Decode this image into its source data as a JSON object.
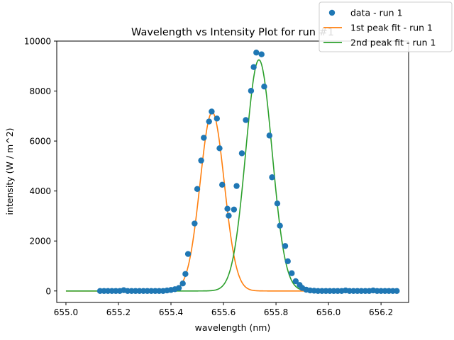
{
  "chart_data": {
    "type": "scatter",
    "title": "Wavelength vs Intensity Plot for run #1",
    "xlabel": "wavelength (nm)",
    "ylabel": "intensity (W / m^2)",
    "xlim": [
      654.965,
      656.305
    ],
    "ylim": [
      -460,
      10000
    ],
    "xticks": [
      655.0,
      655.2,
      655.4,
      655.6,
      655.8,
      656.0,
      656.2
    ],
    "xtick_labels": [
      "655.0",
      "655.2",
      "655.4",
      "655.6",
      "655.8",
      "656.0",
      "656.2"
    ],
    "yticks": [
      0,
      2000,
      4000,
      6000,
      8000,
      10000
    ],
    "ytick_labels": [
      "0",
      "2000",
      "4000",
      "6000",
      "8000",
      "10000"
    ],
    "grid": false,
    "legend_position": "top-right",
    "series": [
      {
        "name": "data - run 1",
        "kind": "scatter",
        "color": "#1f77b4",
        "points": [
          [
            655.13,
            0
          ],
          [
            655.145,
            0
          ],
          [
            655.16,
            0
          ],
          [
            655.175,
            0
          ],
          [
            655.19,
            0
          ],
          [
            655.205,
            0
          ],
          [
            655.22,
            30
          ],
          [
            655.235,
            0
          ],
          [
            655.25,
            0
          ],
          [
            655.265,
            0
          ],
          [
            655.28,
            0
          ],
          [
            655.295,
            0
          ],
          [
            655.31,
            0
          ],
          [
            655.325,
            0
          ],
          [
            655.34,
            0
          ],
          [
            655.355,
            0
          ],
          [
            655.37,
            0
          ],
          [
            655.385,
            20
          ],
          [
            655.4,
            40
          ],
          [
            655.415,
            70
          ],
          [
            655.43,
            120
          ],
          [
            655.445,
            300
          ],
          [
            655.455,
            680
          ],
          [
            655.465,
            1480
          ],
          [
            655.49,
            2700
          ],
          [
            655.5,
            4080
          ],
          [
            655.515,
            5220
          ],
          [
            655.525,
            6130
          ],
          [
            655.545,
            6780
          ],
          [
            655.555,
            7180
          ],
          [
            655.575,
            6900
          ],
          [
            655.585,
            5710
          ],
          [
            655.595,
            4250
          ],
          [
            655.615,
            3290
          ],
          [
            655.62,
            3010
          ],
          [
            655.64,
            3260
          ],
          [
            655.65,
            4200
          ],
          [
            655.67,
            5510
          ],
          [
            655.685,
            6840
          ],
          [
            655.705,
            8010
          ],
          [
            655.715,
            8960
          ],
          [
            655.725,
            9540
          ],
          [
            655.745,
            9470
          ],
          [
            655.755,
            8180
          ],
          [
            655.775,
            6220
          ],
          [
            655.785,
            4550
          ],
          [
            655.805,
            3500
          ],
          [
            655.815,
            2610
          ],
          [
            655.835,
            1800
          ],
          [
            655.845,
            1190
          ],
          [
            655.86,
            710
          ],
          [
            655.875,
            390
          ],
          [
            655.89,
            240
          ],
          [
            655.9,
            120
          ],
          [
            655.915,
            50
          ],
          [
            655.93,
            20
          ],
          [
            655.945,
            10
          ],
          [
            655.96,
            0
          ],
          [
            655.975,
            0
          ],
          [
            655.99,
            0
          ],
          [
            656.005,
            0
          ],
          [
            656.02,
            0
          ],
          [
            656.035,
            0
          ],
          [
            656.05,
            0
          ],
          [
            656.065,
            20
          ],
          [
            656.08,
            0
          ],
          [
            656.095,
            0
          ],
          [
            656.11,
            0
          ],
          [
            656.125,
            0
          ],
          [
            656.14,
            0
          ],
          [
            656.155,
            0
          ],
          [
            656.17,
            20
          ],
          [
            656.185,
            0
          ],
          [
            656.2,
            0
          ],
          [
            656.215,
            0
          ],
          [
            656.23,
            0
          ],
          [
            656.245,
            0
          ],
          [
            656.26,
            0
          ]
        ]
      },
      {
        "name": "1st peak fit - run 1",
        "kind": "gaussian_line",
        "color": "#ff7f0e",
        "amplitude": 7150,
        "center": 655.557,
        "sigma": 0.046,
        "x_range": [
          655.0,
          656.0
        ]
      },
      {
        "name": "2nd peak fit - run 1",
        "kind": "gaussian_line",
        "color": "#2ca02c",
        "amplitude": 9250,
        "center": 655.735,
        "sigma": 0.05,
        "x_range": [
          655.0,
          656.0
        ]
      }
    ]
  }
}
